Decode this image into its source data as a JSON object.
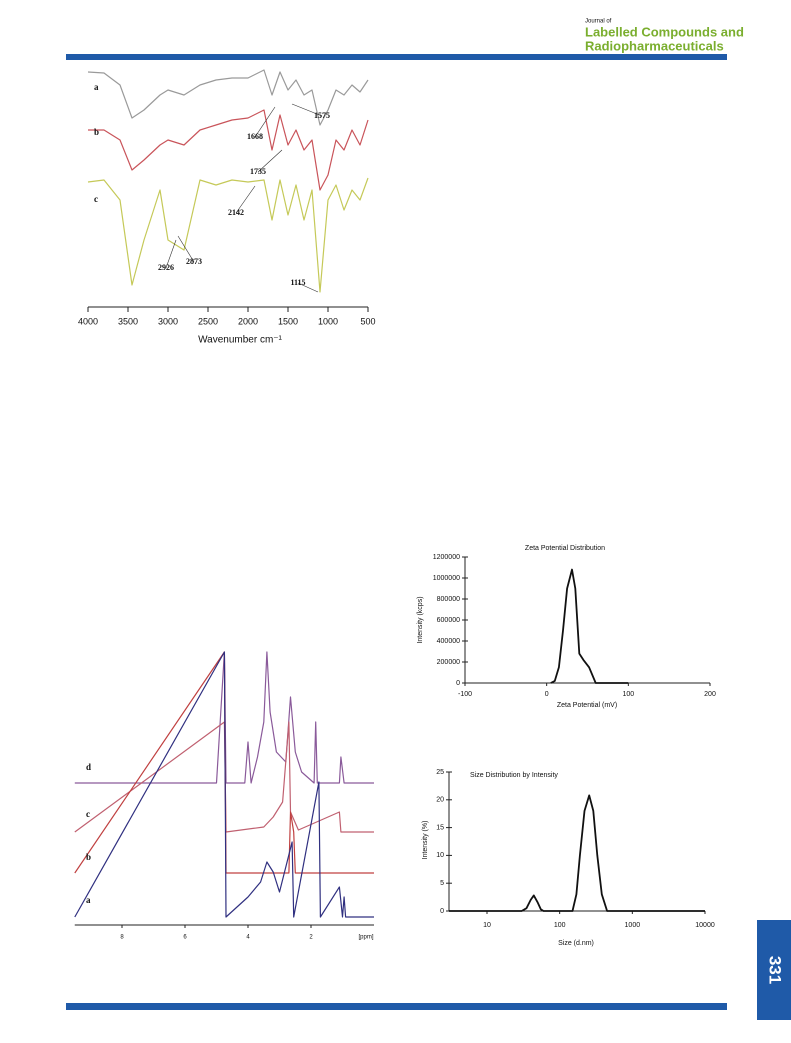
{
  "header": {
    "journal_of": "Journal of",
    "title_line1": "Labelled Compounds and",
    "title_line2": "Radiopharmaceuticals"
  },
  "page_number": "331",
  "chart_data": [
    {
      "type": "line",
      "xlabel": "Wavenumber cm⁻¹",
      "x": [
        4000,
        3800,
        3600,
        3450,
        3300,
        3100,
        3000,
        2800,
        2600,
        2400,
        2200,
        2000,
        1800,
        1700,
        1600,
        1500,
        1400,
        1300,
        1200,
        1100,
        1000,
        900,
        800,
        700,
        600,
        500
      ],
      "xlim": [
        4000,
        500
      ],
      "xticks": [
        4000,
        3500,
        3000,
        2500,
        2000,
        1500,
        1000,
        500
      ],
      "ylim": [
        0,
        240
      ],
      "series": [
        {
          "name": "a",
          "color": "#9a9a9a",
          "values": [
            228,
            227,
            215,
            182,
            190,
            205,
            210,
            205,
            215,
            220,
            222,
            222,
            230,
            205,
            228,
            210,
            220,
            205,
            210,
            175,
            190,
            210,
            205,
            215,
            208,
            220
          ]
        },
        {
          "name": "b",
          "color": "#c9545a",
          "values": [
            170,
            170,
            160,
            130,
            140,
            155,
            160,
            155,
            170,
            175,
            180,
            182,
            190,
            150,
            185,
            155,
            170,
            150,
            160,
            110,
            125,
            160,
            150,
            170,
            155,
            180
          ]
        },
        {
          "name": "c",
          "color": "#c5c958",
          "values": [
            118,
            120,
            100,
            15,
            60,
            110,
            60,
            50,
            120,
            115,
            120,
            118,
            120,
            80,
            120,
            85,
            115,
            80,
            110,
            8,
            100,
            115,
            90,
            110,
            100,
            122
          ]
        }
      ],
      "annotations": [
        "1575",
        "1668",
        "1735",
        "2142",
        "2926",
        "2873",
        "1115"
      ]
    },
    {
      "type": "line",
      "xlabel": "[ppm]",
      "xlim": [
        9.5,
        0
      ],
      "xticks": [
        8,
        6,
        4,
        2
      ],
      "ylim": [
        0,
        280
      ],
      "series": [
        {
          "name": "d",
          "color": "#8a5a9a",
          "x": [
            9.5,
            5.0,
            4.75,
            4.7,
            4.1,
            4.0,
            3.9,
            3.7,
            3.5,
            3.4,
            3.3,
            3.1,
            2.8,
            2.65,
            2.5,
            2.3,
            1.9,
            1.85,
            1.8,
            1.1,
            1.05,
            0.95,
            0
          ],
          "values": [
            139,
            139,
            270,
            139,
            139,
            180,
            139,
            165,
            200,
            270,
            210,
            170,
            160,
            225,
            170,
            150,
            139,
            200,
            139,
            139,
            165,
            139,
            139
          ]
        },
        {
          "name": "c",
          "color": "#c06070",
          "x": [
            9.5,
            4.75,
            4.7,
            3.5,
            3.2,
            2.9,
            2.7,
            2.65,
            2.4,
            1.1,
            1.05,
            0
          ],
          "values": [
            90,
            200,
            90,
            95,
            105,
            120,
            200,
            110,
            92,
            110,
            90,
            90
          ]
        },
        {
          "name": "b",
          "color": "#c04040",
          "x": [
            9.5,
            4.75,
            4.7,
            2.7,
            2.65,
            2.55,
            2.5,
            0
          ],
          "values": [
            49,
            270,
            49,
            49,
            110,
            90,
            49,
            49
          ]
        },
        {
          "name": "a",
          "color": "#303080",
          "x": [
            9.5,
            4.75,
            4.7,
            4.0,
            3.6,
            3.4,
            3.2,
            3.0,
            2.6,
            2.55,
            1.75,
            1.7,
            1.1,
            1.0,
            0.95,
            0.9,
            0
          ],
          "values": [
            5,
            270,
            5,
            25,
            40,
            60,
            50,
            30,
            80,
            5,
            140,
            5,
            35,
            5,
            25,
            5,
            5
          ]
        }
      ]
    },
    {
      "type": "line",
      "title": "Zeta Potential Distribution",
      "xlabel": "Zeta Potential (mV)",
      "ylabel": "Intensity (kcps)",
      "x": [
        5,
        10,
        15,
        20,
        25,
        31,
        35,
        40,
        45,
        52,
        60,
        100
      ],
      "values": [
        0,
        20000,
        150000,
        500000,
        900000,
        1080000,
        900000,
        280000,
        220000,
        150000,
        0,
        0
      ],
      "color": "#111111",
      "xlim": [
        -100,
        200
      ],
      "xticks": [
        -100,
        0,
        100,
        200
      ],
      "ylim": [
        0,
        1200000
      ],
      "yticks": [
        0,
        200000,
        400000,
        600000,
        800000,
        1000000,
        1200000
      ]
    },
    {
      "type": "line",
      "title": "Size Distribution by Intensity",
      "xlabel": "Size (d.nm)",
      "ylabel": "Intensity (%)",
      "log_x": true,
      "x": [
        3,
        30,
        35,
        40,
        44,
        50,
        55,
        60,
        150,
        170,
        190,
        220,
        255,
        290,
        330,
        380,
        450,
        10000
      ],
      "values": [
        0,
        0,
        0.5,
        2,
        2.8,
        1.5,
        0.3,
        0,
        0,
        3,
        10,
        18,
        20.8,
        18,
        10,
        3,
        0,
        0
      ],
      "color": "#111111",
      "xlim": [
        3,
        10000
      ],
      "xticks": [
        10,
        100,
        1000,
        10000
      ],
      "ylim": [
        0,
        25
      ],
      "yticks": [
        0,
        5,
        10,
        15,
        20,
        25
      ]
    }
  ]
}
